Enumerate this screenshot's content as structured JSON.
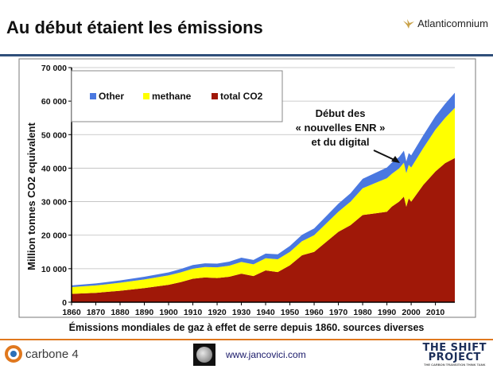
{
  "slide": {
    "title": "Au début étaient les émissions",
    "caption": "Émissions mondiales de gaz à effet de serre depuis 1860. sources diverses"
  },
  "logos": {
    "top_right": "Atlanticomnium",
    "left": "carbone 4",
    "website": "www.jancovici.com",
    "right_line1": "THE SHIFT",
    "right_line2": "PROJECT",
    "right_tagline": "THE CARBON TRANSITION THINK TANK"
  },
  "colors": {
    "co2": "#a01808",
    "methane": "#ffff00",
    "other": "#4a78e0",
    "title_rule": "#2f4f7a",
    "footer_rule": "#e0781e"
  },
  "chart_data": {
    "type": "area",
    "stacked": true,
    "xlabel": "",
    "ylabel": "Million tonnes CO2 equivalent",
    "xlim": [
      1860,
      2018
    ],
    "ylim": [
      0,
      70000
    ],
    "x_ticks": [
      "1860",
      "1870",
      "1880",
      "1890",
      "1900",
      "1910",
      "1920",
      "1930",
      "1940",
      "1950",
      "1960",
      "1970",
      "1980",
      "1990",
      "2000",
      "2010"
    ],
    "y_ticks": [
      "0",
      "10 000",
      "20 000",
      "30 000",
      "40 000",
      "50 000",
      "60 000",
      "70 000"
    ],
    "y_tick_values": [
      0,
      10000,
      20000,
      30000,
      40000,
      50000,
      60000,
      70000
    ],
    "legend_position": "top-left",
    "x": [
      1860,
      1870,
      1880,
      1890,
      1900,
      1905,
      1910,
      1915,
      1920,
      1925,
      1930,
      1935,
      1940,
      1945,
      1950,
      1955,
      1960,
      1965,
      1970,
      1975,
      1980,
      1985,
      1990,
      1992,
      1995,
      1997,
      1998,
      1999,
      2000,
      2005,
      2010,
      2014,
      2018
    ],
    "series": [
      {
        "name": "total CO2",
        "values": [
          2500,
          2800,
          3400,
          4200,
          5200,
          6000,
          7000,
          7400,
          7200,
          7600,
          8500,
          7800,
          9500,
          9000,
          11000,
          14000,
          15000,
          18000,
          21000,
          23000,
          26000,
          26500,
          27000,
          28500,
          30000,
          31500,
          28500,
          31000,
          30000,
          35000,
          39000,
          41500,
          43000
        ]
      },
      {
        "name": "methane",
        "values": [
          2000,
          2200,
          2400,
          2600,
          2800,
          2900,
          3000,
          3100,
          3200,
          3300,
          3500,
          3500,
          3600,
          3800,
          4000,
          4200,
          5000,
          5500,
          6000,
          7000,
          8000,
          9000,
          10000,
          9800,
          9900,
          10100,
          10000,
          10000,
          10200,
          11000,
          12500,
          13500,
          15000
        ]
      },
      {
        "name": "Other",
        "values": [
          500,
          600,
          700,
          800,
          900,
          1000,
          1100,
          1100,
          1100,
          1200,
          1300,
          1300,
          1400,
          1500,
          1800,
          1900,
          2000,
          2200,
          2400,
          2500,
          2800,
          3000,
          3200,
          3300,
          3400,
          3600,
          3500,
          3500,
          3600,
          3800,
          4000,
          4200,
          4500
        ]
      }
    ],
    "annotations": [
      {
        "line1": "Début des",
        "line2": "« nouvelles ENR »",
        "line3": "et du digital",
        "x": 1995
      }
    ]
  }
}
